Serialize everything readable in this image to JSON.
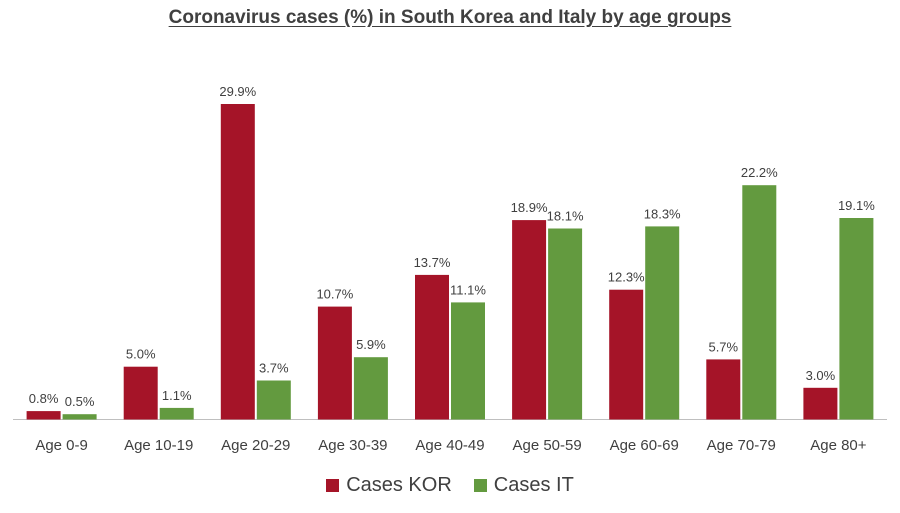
{
  "chart_data": {
    "type": "bar",
    "title": "Coronavirus cases (%) in South Korea and Italy by age groups",
    "xlabel": "",
    "ylabel": "",
    "categories": [
      "Age 0-9",
      "Age 10-19",
      "Age 20-29",
      "Age 30-39",
      "Age 40-49",
      "Age 50-59",
      "Age 60-69",
      "Age 70-79",
      "Age 80+"
    ],
    "series": [
      {
        "name": "Cases KOR",
        "color": "#A51428",
        "values": [
          0.8,
          5.0,
          29.9,
          10.7,
          13.7,
          18.9,
          12.3,
          5.7,
          3.0
        ],
        "labels": [
          "0.8%",
          "5.0%",
          "29.9%",
          "10.7%",
          "13.7%",
          "18.9%",
          "12.3%",
          "5.7%",
          "3.0%"
        ]
      },
      {
        "name": "Cases IT",
        "color": "#639A3F",
        "values": [
          0.5,
          1.1,
          3.7,
          5.9,
          11.1,
          18.1,
          18.3,
          22.2,
          19.1
        ],
        "labels": [
          "0.5%",
          "1.1%",
          "3.7%",
          "5.9%",
          "11.1%",
          "18.1%",
          "18.3%",
          "22.2%",
          "19.1%"
        ]
      }
    ],
    "ylim": [
      0,
      30
    ],
    "grid": false,
    "legend_position": "bottom"
  }
}
